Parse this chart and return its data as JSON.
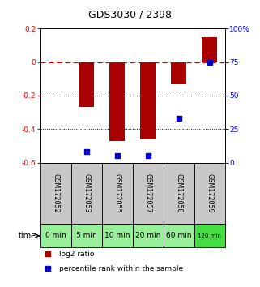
{
  "title": "GDS3030 / 2398",
  "samples": [
    "GSM172052",
    "GSM172053",
    "GSM172055",
    "GSM172057",
    "GSM172058",
    "GSM172059"
  ],
  "times": [
    "0 min",
    "5 min",
    "10 min",
    "20 min",
    "60 min",
    "120 min"
  ],
  "log2_ratio": [
    0.0,
    -0.27,
    -0.47,
    -0.46,
    -0.13,
    0.15
  ],
  "percentile": [
    null,
    8.0,
    5.0,
    5.0,
    33.0,
    75.0
  ],
  "ylim_left": [
    -0.6,
    0.2
  ],
  "ylim_right": [
    0,
    100
  ],
  "yticks_left": [
    -0.6,
    -0.4,
    -0.2,
    0.0,
    0.2
  ],
  "yticks_right": [
    0,
    25,
    50,
    75,
    100
  ],
  "ytick_labels_left": [
    "-0.6",
    "-0.4",
    "-0.2",
    "0",
    "0.2"
  ],
  "ytick_labels_right": [
    "0",
    "25",
    "50",
    "75",
    "100%"
  ],
  "bar_color": "#AA0000",
  "dot_color": "#0000CC",
  "hline_y": 0.0,
  "dotted_lines": [
    -0.2,
    -0.4
  ],
  "time_bg_color": "#99EE99",
  "time_bg_last_color": "#44DD44",
  "sample_bg_color": "#C8C8C8",
  "legend_log2": "log2 ratio",
  "legend_pct": "percentile rank within the sample",
  "bar_width": 0.5
}
